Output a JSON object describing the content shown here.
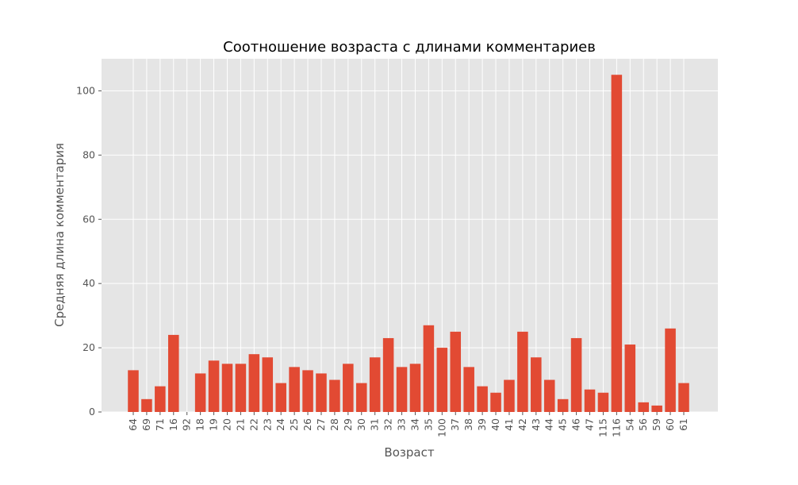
{
  "chart_data": {
    "type": "bar",
    "title": "Соотношение возраста с длинами комментариев",
    "xlabel": "Возраст",
    "ylabel": "Средняя длина комментария",
    "categories": [
      "64",
      "69",
      "71",
      "16",
      "92",
      "18",
      "19",
      "20",
      "21",
      "22",
      "23",
      "24",
      "25",
      "26",
      "27",
      "28",
      "29",
      "30",
      "31",
      "32",
      "33",
      "34",
      "35",
      "100",
      "37",
      "38",
      "39",
      "40",
      "41",
      "42",
      "43",
      "44",
      "45",
      "46",
      "47",
      "115",
      "116",
      "54",
      "56",
      "59",
      "60",
      "61"
    ],
    "values": [
      13,
      4,
      8,
      24,
      0,
      12,
      16,
      15,
      15,
      18,
      17,
      9,
      14,
      13,
      12,
      10,
      15,
      9,
      17,
      23,
      14,
      15,
      27,
      20,
      25,
      14,
      8,
      6,
      10,
      25,
      17,
      10,
      4,
      23,
      7,
      6,
      105,
      21,
      3,
      2,
      26,
      9
    ],
    "ylim": [
      0,
      110
    ],
    "yticks": [
      0,
      20,
      40,
      60,
      80,
      100
    ],
    "grid": true,
    "legend": "none",
    "colors": {
      "bar": "#E24A33",
      "plot_bg": "#E5E5E5",
      "grid": "#FFFFFF",
      "text": "#555555"
    }
  }
}
